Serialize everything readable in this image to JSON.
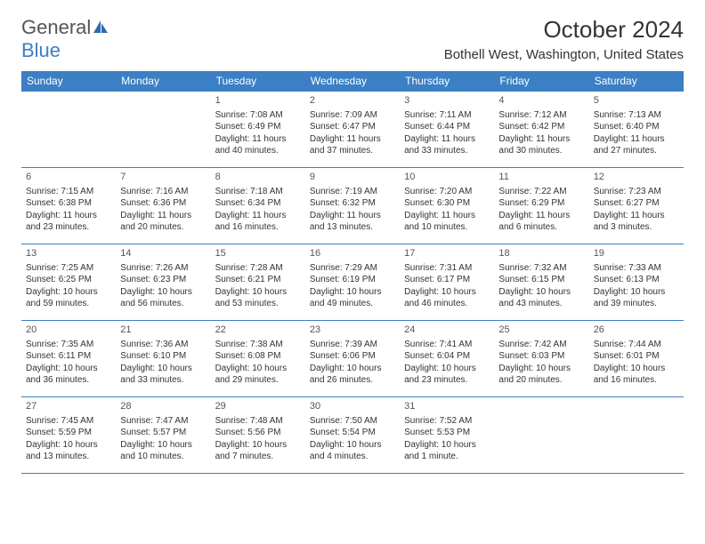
{
  "logo": {
    "general": "General",
    "blue": "Blue"
  },
  "title": "October 2024",
  "location": "Bothell West, Washington, United States",
  "colors": {
    "header_bg": "#3b7fc4",
    "header_text": "#ffffff",
    "border": "#3b7fc4",
    "text": "#333333",
    "background": "#ffffff"
  },
  "day_headers": [
    "Sunday",
    "Monday",
    "Tuesday",
    "Wednesday",
    "Thursday",
    "Friday",
    "Saturday"
  ],
  "weeks": [
    [
      null,
      null,
      {
        "n": "1",
        "sr": "Sunrise: 7:08 AM",
        "ss": "Sunset: 6:49 PM",
        "dl": "Daylight: 11 hours and 40 minutes."
      },
      {
        "n": "2",
        "sr": "Sunrise: 7:09 AM",
        "ss": "Sunset: 6:47 PM",
        "dl": "Daylight: 11 hours and 37 minutes."
      },
      {
        "n": "3",
        "sr": "Sunrise: 7:11 AM",
        "ss": "Sunset: 6:44 PM",
        "dl": "Daylight: 11 hours and 33 minutes."
      },
      {
        "n": "4",
        "sr": "Sunrise: 7:12 AM",
        "ss": "Sunset: 6:42 PM",
        "dl": "Daylight: 11 hours and 30 minutes."
      },
      {
        "n": "5",
        "sr": "Sunrise: 7:13 AM",
        "ss": "Sunset: 6:40 PM",
        "dl": "Daylight: 11 hours and 27 minutes."
      }
    ],
    [
      {
        "n": "6",
        "sr": "Sunrise: 7:15 AM",
        "ss": "Sunset: 6:38 PM",
        "dl": "Daylight: 11 hours and 23 minutes."
      },
      {
        "n": "7",
        "sr": "Sunrise: 7:16 AM",
        "ss": "Sunset: 6:36 PM",
        "dl": "Daylight: 11 hours and 20 minutes."
      },
      {
        "n": "8",
        "sr": "Sunrise: 7:18 AM",
        "ss": "Sunset: 6:34 PM",
        "dl": "Daylight: 11 hours and 16 minutes."
      },
      {
        "n": "9",
        "sr": "Sunrise: 7:19 AM",
        "ss": "Sunset: 6:32 PM",
        "dl": "Daylight: 11 hours and 13 minutes."
      },
      {
        "n": "10",
        "sr": "Sunrise: 7:20 AM",
        "ss": "Sunset: 6:30 PM",
        "dl": "Daylight: 11 hours and 10 minutes."
      },
      {
        "n": "11",
        "sr": "Sunrise: 7:22 AM",
        "ss": "Sunset: 6:29 PM",
        "dl": "Daylight: 11 hours and 6 minutes."
      },
      {
        "n": "12",
        "sr": "Sunrise: 7:23 AM",
        "ss": "Sunset: 6:27 PM",
        "dl": "Daylight: 11 hours and 3 minutes."
      }
    ],
    [
      {
        "n": "13",
        "sr": "Sunrise: 7:25 AM",
        "ss": "Sunset: 6:25 PM",
        "dl": "Daylight: 10 hours and 59 minutes."
      },
      {
        "n": "14",
        "sr": "Sunrise: 7:26 AM",
        "ss": "Sunset: 6:23 PM",
        "dl": "Daylight: 10 hours and 56 minutes."
      },
      {
        "n": "15",
        "sr": "Sunrise: 7:28 AM",
        "ss": "Sunset: 6:21 PM",
        "dl": "Daylight: 10 hours and 53 minutes."
      },
      {
        "n": "16",
        "sr": "Sunrise: 7:29 AM",
        "ss": "Sunset: 6:19 PM",
        "dl": "Daylight: 10 hours and 49 minutes."
      },
      {
        "n": "17",
        "sr": "Sunrise: 7:31 AM",
        "ss": "Sunset: 6:17 PM",
        "dl": "Daylight: 10 hours and 46 minutes."
      },
      {
        "n": "18",
        "sr": "Sunrise: 7:32 AM",
        "ss": "Sunset: 6:15 PM",
        "dl": "Daylight: 10 hours and 43 minutes."
      },
      {
        "n": "19",
        "sr": "Sunrise: 7:33 AM",
        "ss": "Sunset: 6:13 PM",
        "dl": "Daylight: 10 hours and 39 minutes."
      }
    ],
    [
      {
        "n": "20",
        "sr": "Sunrise: 7:35 AM",
        "ss": "Sunset: 6:11 PM",
        "dl": "Daylight: 10 hours and 36 minutes."
      },
      {
        "n": "21",
        "sr": "Sunrise: 7:36 AM",
        "ss": "Sunset: 6:10 PM",
        "dl": "Daylight: 10 hours and 33 minutes."
      },
      {
        "n": "22",
        "sr": "Sunrise: 7:38 AM",
        "ss": "Sunset: 6:08 PM",
        "dl": "Daylight: 10 hours and 29 minutes."
      },
      {
        "n": "23",
        "sr": "Sunrise: 7:39 AM",
        "ss": "Sunset: 6:06 PM",
        "dl": "Daylight: 10 hours and 26 minutes."
      },
      {
        "n": "24",
        "sr": "Sunrise: 7:41 AM",
        "ss": "Sunset: 6:04 PM",
        "dl": "Daylight: 10 hours and 23 minutes."
      },
      {
        "n": "25",
        "sr": "Sunrise: 7:42 AM",
        "ss": "Sunset: 6:03 PM",
        "dl": "Daylight: 10 hours and 20 minutes."
      },
      {
        "n": "26",
        "sr": "Sunrise: 7:44 AM",
        "ss": "Sunset: 6:01 PM",
        "dl": "Daylight: 10 hours and 16 minutes."
      }
    ],
    [
      {
        "n": "27",
        "sr": "Sunrise: 7:45 AM",
        "ss": "Sunset: 5:59 PM",
        "dl": "Daylight: 10 hours and 13 minutes."
      },
      {
        "n": "28",
        "sr": "Sunrise: 7:47 AM",
        "ss": "Sunset: 5:57 PM",
        "dl": "Daylight: 10 hours and 10 minutes."
      },
      {
        "n": "29",
        "sr": "Sunrise: 7:48 AM",
        "ss": "Sunset: 5:56 PM",
        "dl": "Daylight: 10 hours and 7 minutes."
      },
      {
        "n": "30",
        "sr": "Sunrise: 7:50 AM",
        "ss": "Sunset: 5:54 PM",
        "dl": "Daylight: 10 hours and 4 minutes."
      },
      {
        "n": "31",
        "sr": "Sunrise: 7:52 AM",
        "ss": "Sunset: 5:53 PM",
        "dl": "Daylight: 10 hours and 1 minute."
      },
      null,
      null
    ]
  ]
}
